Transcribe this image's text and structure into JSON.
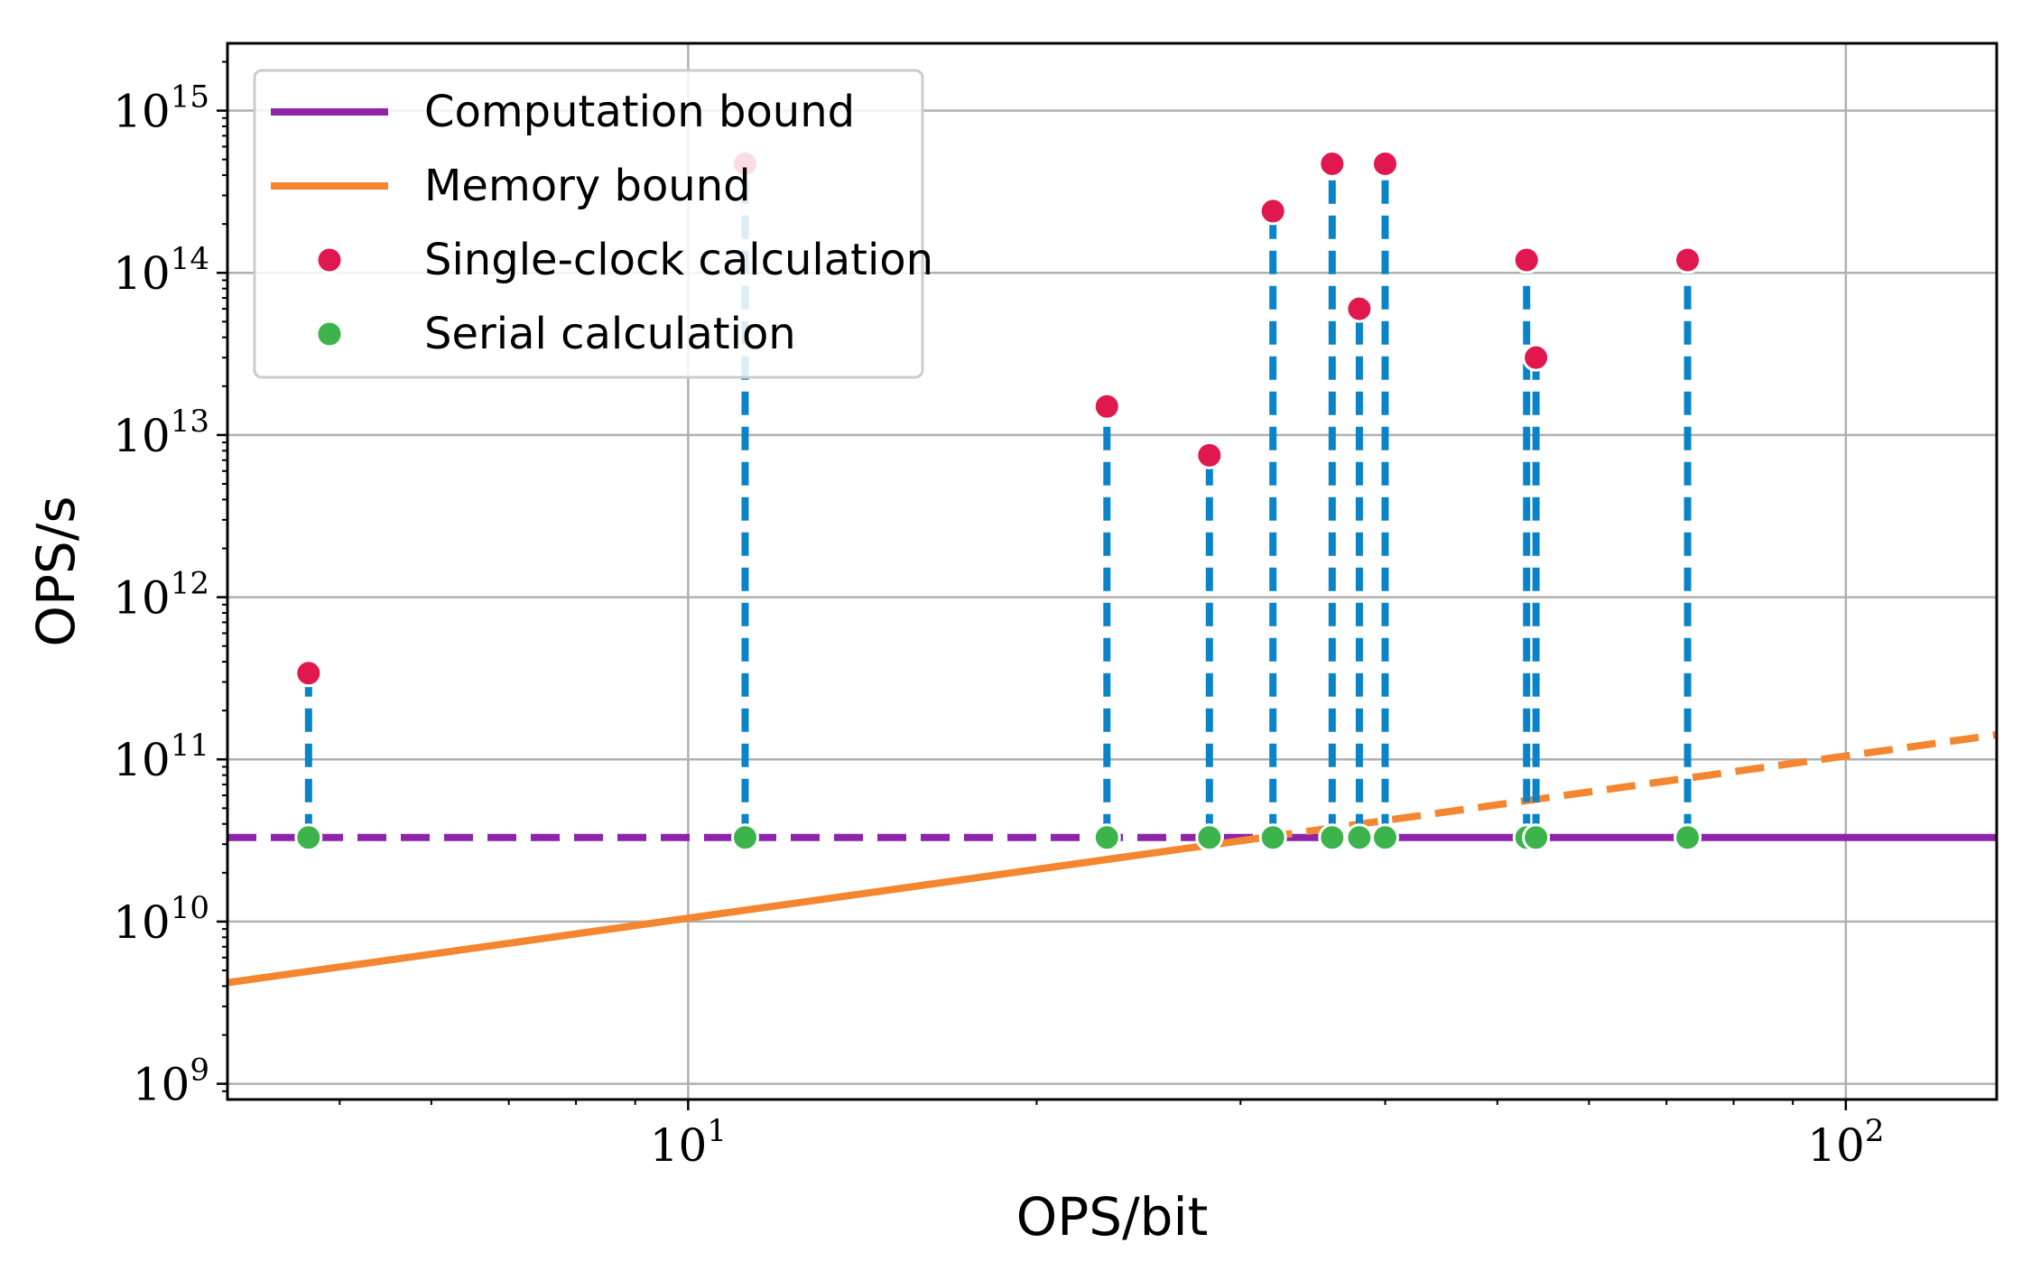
{
  "chart_data": {
    "type": "scatter",
    "title": "",
    "xlabel": "OPS/bit",
    "ylabel": "OPS/s",
    "xscale": "log",
    "yscale": "log",
    "xlim": [
      4.0,
      135
    ],
    "ylim": [
      800000000.0,
      2600000000000000.0
    ],
    "grid": true,
    "x_ticks": [
      {
        "value": 10,
        "base": "10",
        "exp": "1"
      },
      {
        "value": 100,
        "base": "10",
        "exp": "2"
      }
    ],
    "y_ticks": [
      {
        "value": 1000000000.0,
        "base": "10",
        "exp": "9"
      },
      {
        "value": 10000000000.0,
        "base": "10",
        "exp": "10"
      },
      {
        "value": 100000000000.0,
        "base": "10",
        "exp": "11"
      },
      {
        "value": 1000000000000.0,
        "base": "10",
        "exp": "12"
      },
      {
        "value": 10000000000000.0,
        "base": "10",
        "exp": "13"
      },
      {
        "value": 100000000000000.0,
        "base": "10",
        "exp": "14"
      },
      {
        "value": 1000000000000000.0,
        "base": "10",
        "exp": "15"
      }
    ],
    "computation_bound": 33000000000.0,
    "memory_bound_slope": 1050000000.0,
    "ridge_point_x": 31.4,
    "legend": {
      "location": "upper-left",
      "entries": [
        {
          "label": "Computation bound",
          "kind": "line",
          "color": "#8e24aa"
        },
        {
          "label": "Memory bound",
          "kind": "line",
          "color": "#f4862f"
        },
        {
          "label": "Single-clock calculation",
          "kind": "marker",
          "color": "#e0184d"
        },
        {
          "label": "Serial calculation",
          "kind": "marker",
          "color": "#3cb44b"
        }
      ]
    },
    "series": [
      {
        "name": "Single-clock calculation",
        "color": "#e0184d",
        "x": [
          4.7,
          11.2,
          23,
          28.2,
          32,
          36,
          38,
          40,
          53,
          54,
          73
        ],
        "y": [
          340000000000.0,
          470000000000000.0,
          15000000000000.0,
          7500000000000.0,
          240000000000000.0,
          470000000000000.0,
          60000000000000.0,
          470000000000000.0,
          120000000000000.0,
          30000000000000.0,
          120000000000000.0
        ]
      },
      {
        "name": "Serial calculation",
        "color": "#3cb44b",
        "x": [
          4.7,
          11.2,
          23,
          28.2,
          32,
          36,
          38,
          40,
          53,
          54,
          73
        ],
        "y": [
          33000000000.0,
          33000000000.0,
          33000000000.0,
          33000000000.0,
          33000000000.0,
          33000000000.0,
          33000000000.0,
          33000000000.0,
          33000000000.0,
          33000000000.0,
          33000000000.0
        ]
      }
    ],
    "connector_color": "#0a84c8"
  }
}
